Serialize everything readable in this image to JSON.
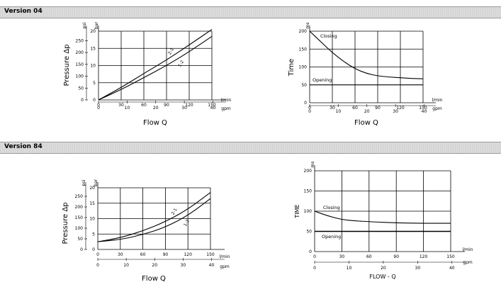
{
  "sections": [
    {
      "title": "Version 04"
    },
    {
      "title": "Version 84"
    }
  ],
  "chart_data": [
    {
      "type": "line",
      "xlabel": "Flow Q",
      "ylabel": "Pressure Δp",
      "x_unit_primary": "l/min",
      "x_unit_secondary": "gpm",
      "y_unit_primary": "bar",
      "y_unit_secondary": "psi",
      "x_ticks": [
        "0",
        "30",
        "60",
        "90",
        "120",
        "150"
      ],
      "x2_ticks": [
        "0",
        "10",
        "20",
        "30",
        "40"
      ],
      "y_ticks": [
        "0",
        "5",
        "10",
        "15",
        "20"
      ],
      "y2_ticks": [
        "0",
        "50",
        "100",
        "150",
        "200",
        "250"
      ],
      "xlim": [
        0,
        150
      ],
      "ylim": [
        0,
        20
      ],
      "grid": true,
      "series": [
        {
          "name": "2-1",
          "x": [
            0,
            30,
            60,
            90,
            120,
            150
          ],
          "y": [
            0,
            3.6,
            7.7,
            11.6,
            16,
            20.5
          ]
        },
        {
          "name": "1-2",
          "x": [
            0,
            30,
            60,
            90,
            120,
            150
          ],
          "y": [
            0,
            3,
            6.5,
            10,
            14,
            18.5
          ]
        }
      ]
    },
    {
      "type": "line",
      "xlabel": "Flow Q",
      "ylabel": "Time",
      "x_unit_primary": "l/min",
      "x_unit_secondary": "gpm",
      "y_unit_primary": "ms",
      "x_ticks": [
        "0",
        "30",
        "60",
        "90",
        "120",
        "150"
      ],
      "x2_ticks": [
        "0",
        "10",
        "20",
        "30",
        "40"
      ],
      "y_ticks": [
        "0",
        "50",
        "100",
        "150",
        "200"
      ],
      "xlim": [
        0,
        150
      ],
      "ylim": [
        0,
        200
      ],
      "grid": true,
      "series": [
        {
          "name": "Closing",
          "x": [
            0,
            15,
            30,
            45,
            60,
            75,
            90,
            105,
            120,
            135,
            150
          ],
          "y": [
            200,
            170,
            140,
            115,
            95,
            82,
            75,
            72,
            70,
            68,
            67
          ]
        },
        {
          "name": "Opening",
          "x": [
            0,
            150
          ],
          "y": [
            50,
            50
          ]
        }
      ]
    },
    {
      "type": "line",
      "xlabel": "Flow Q",
      "ylabel": "Pressure Δp",
      "x_unit_primary": "l/min",
      "x_unit_secondary": "gpm",
      "y_unit_primary": "bar",
      "y_unit_secondary": "psi",
      "x_ticks": [
        "0",
        "30",
        "60",
        "90",
        "120",
        "150"
      ],
      "x2_ticks": [
        "0",
        "10",
        "20",
        "30",
        "40"
      ],
      "y_ticks": [
        "0",
        "5",
        "10",
        "15",
        "20"
      ],
      "y2_ticks": [
        "0",
        "50",
        "100",
        "150",
        "200",
        "250"
      ],
      "xlim": [
        0,
        150
      ],
      "ylim": [
        0,
        20
      ],
      "grid": true,
      "series": [
        {
          "name": "2-1",
          "x": [
            0,
            30,
            60,
            90,
            120,
            150
          ],
          "y": [
            2.5,
            3.8,
            6,
            9,
            13,
            18.5
          ]
        },
        {
          "name": "1-2",
          "x": [
            0,
            30,
            60,
            90,
            120,
            150
          ],
          "y": [
            2.5,
            3.2,
            4.8,
            7.2,
            11,
            16.5
          ]
        }
      ]
    },
    {
      "type": "line",
      "xlabel": "FLOW - Q",
      "ylabel": "TIME",
      "x_unit_primary": "l/min",
      "x_unit_secondary": "gpm",
      "y_unit_primary": "ms",
      "x_ticks": [
        "0",
        "30",
        "60",
        "90",
        "120",
        "150"
      ],
      "x2_ticks": [
        "0",
        "10",
        "20",
        "30",
        "40"
      ],
      "y_ticks": [
        "0",
        "50",
        "100",
        "150",
        "200"
      ],
      "xlim": [
        0,
        150
      ],
      "ylim": [
        0,
        200
      ],
      "grid": true,
      "series": [
        {
          "name": "Closing",
          "x": [
            0,
            15,
            30,
            45,
            60,
            90,
            120,
            150
          ],
          "y": [
            100,
            88,
            79,
            76,
            74,
            71,
            70,
            70
          ]
        },
        {
          "name": "Opening",
          "x": [
            0,
            150
          ],
          "y": [
            50,
            50
          ]
        }
      ]
    }
  ]
}
